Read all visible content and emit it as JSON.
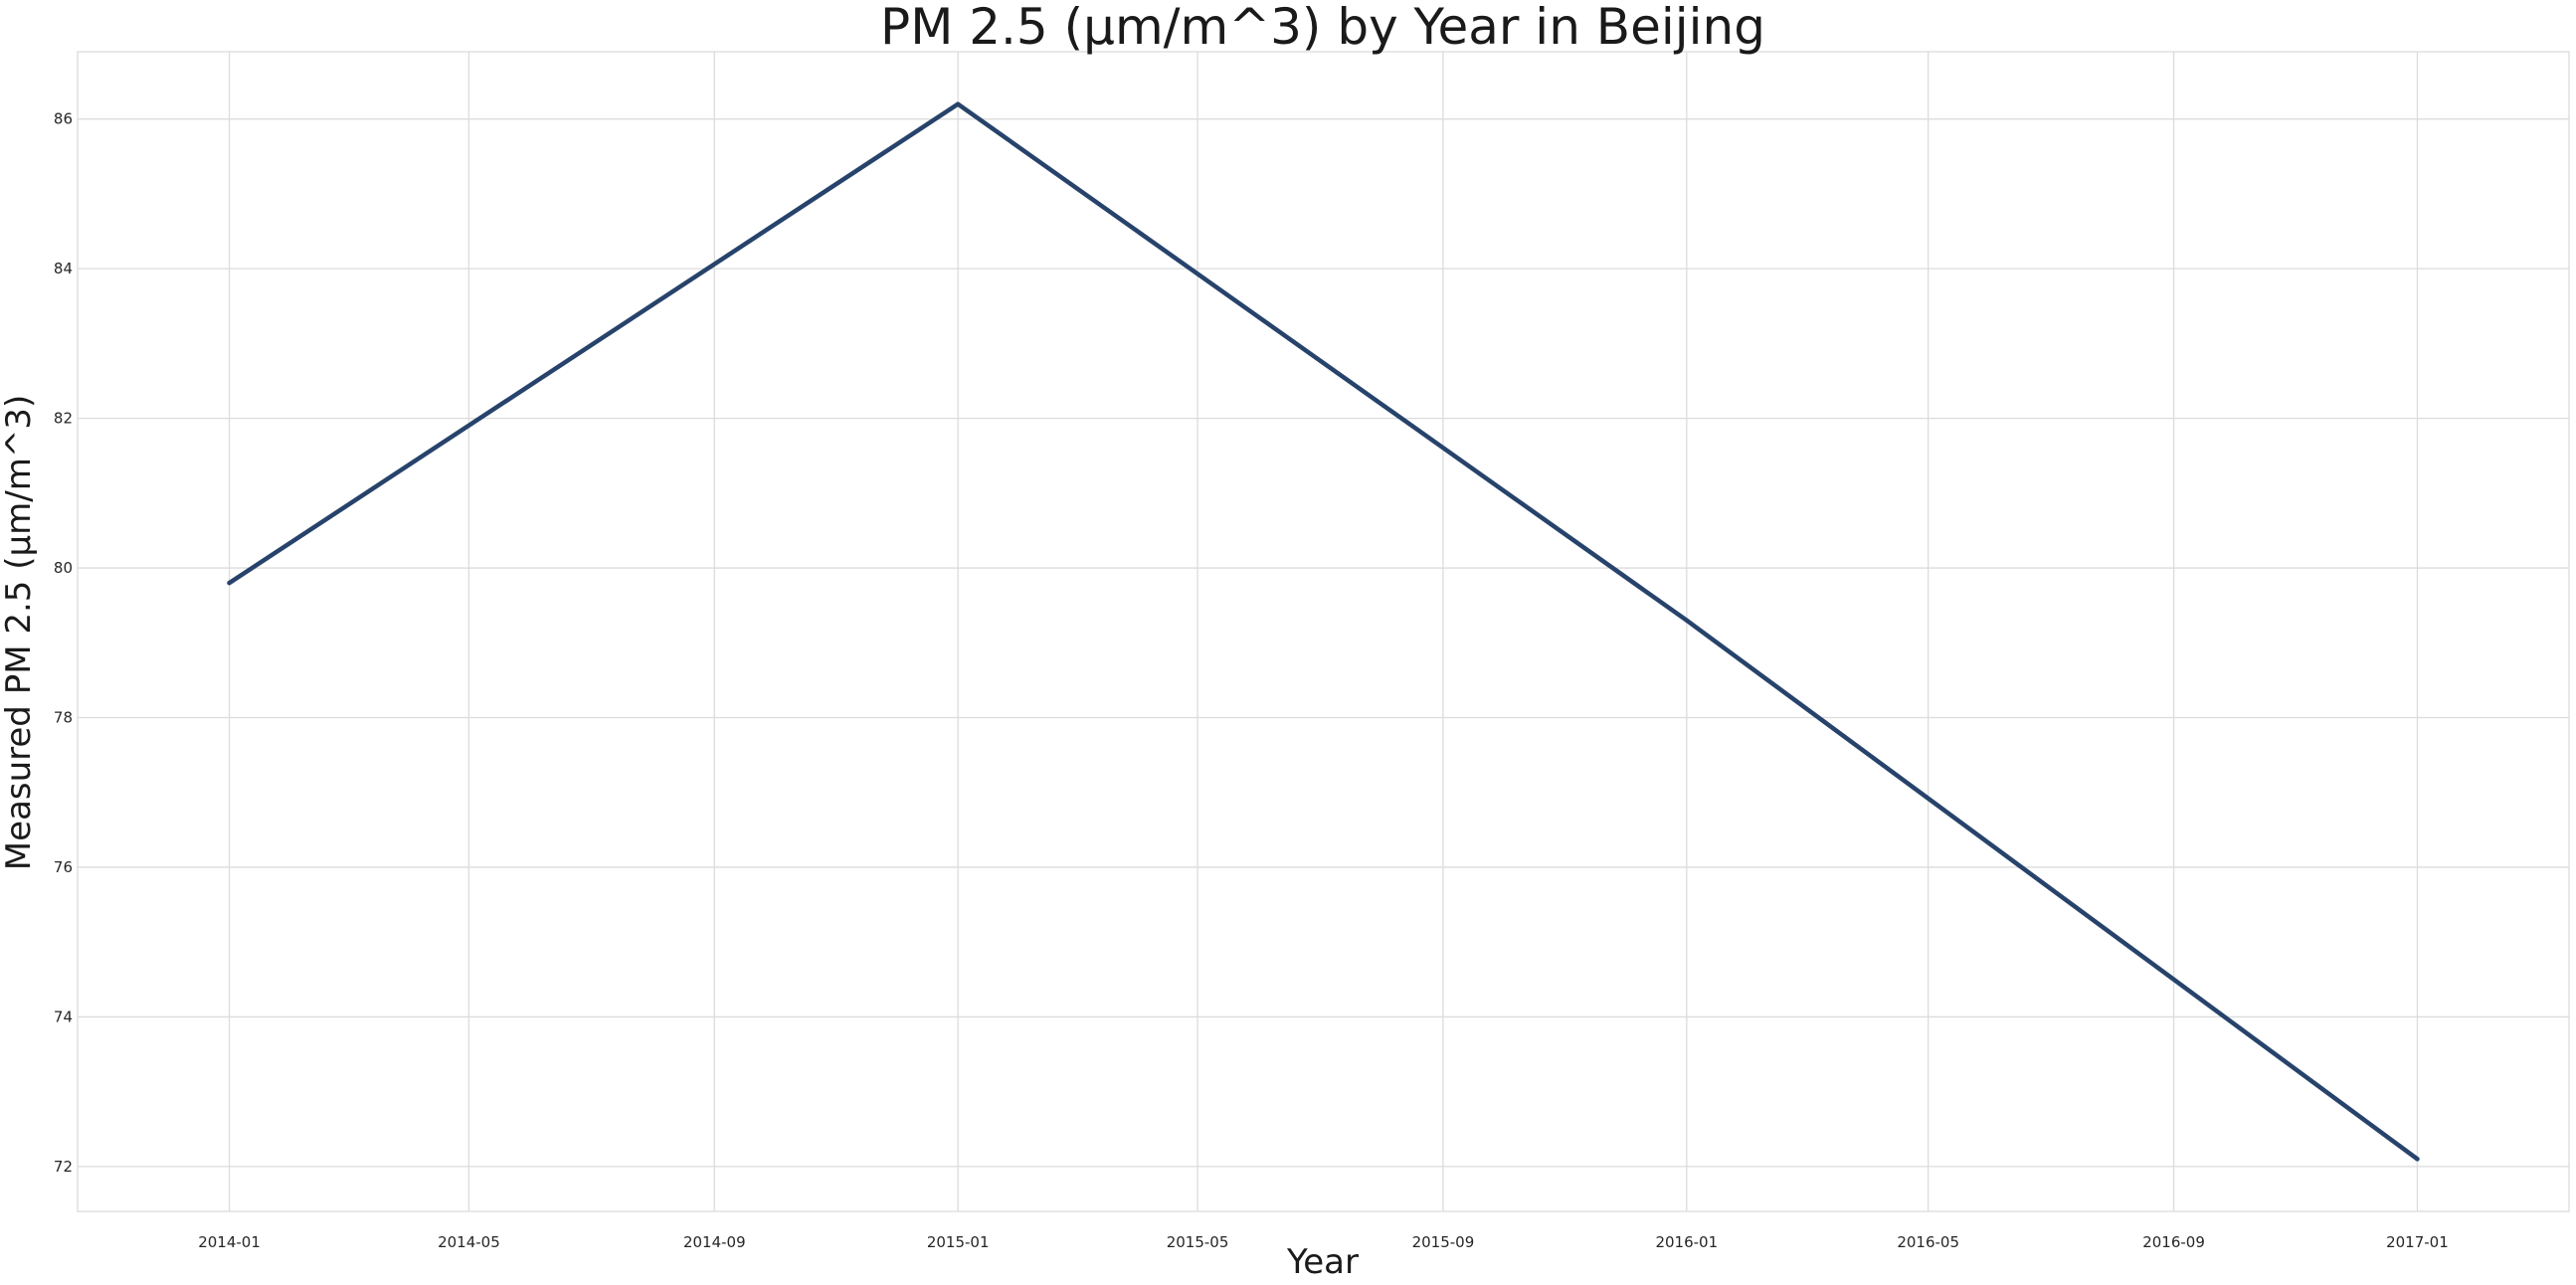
{
  "chart_data": {
    "type": "line",
    "title": "PM 2.5 (µm/m^3) by Year in Beijing",
    "xlabel": "Year",
    "ylabel": "Measured PM 2.5 (µm/m^3)",
    "x": [
      "2014-01-01",
      "2015-01-01",
      "2016-01-01",
      "2017-01-01"
    ],
    "series": [
      {
        "values": [
          79.8,
          86.2,
          79.3,
          72.1
        ],
        "color": "#27436b"
      }
    ],
    "xlim": [
      "2013-10-17",
      "2017-03-18"
    ],
    "ylim": [
      71.4,
      86.9
    ],
    "x_ticks": [
      "2014-01",
      "2014-05",
      "2014-09",
      "2015-01",
      "2015-05",
      "2015-09",
      "2016-01",
      "2016-05",
      "2016-09",
      "2017-01"
    ],
    "y_ticks": [
      72,
      74,
      76,
      78,
      80,
      82,
      84,
      86
    ],
    "grid": true,
    "legend": "none"
  }
}
